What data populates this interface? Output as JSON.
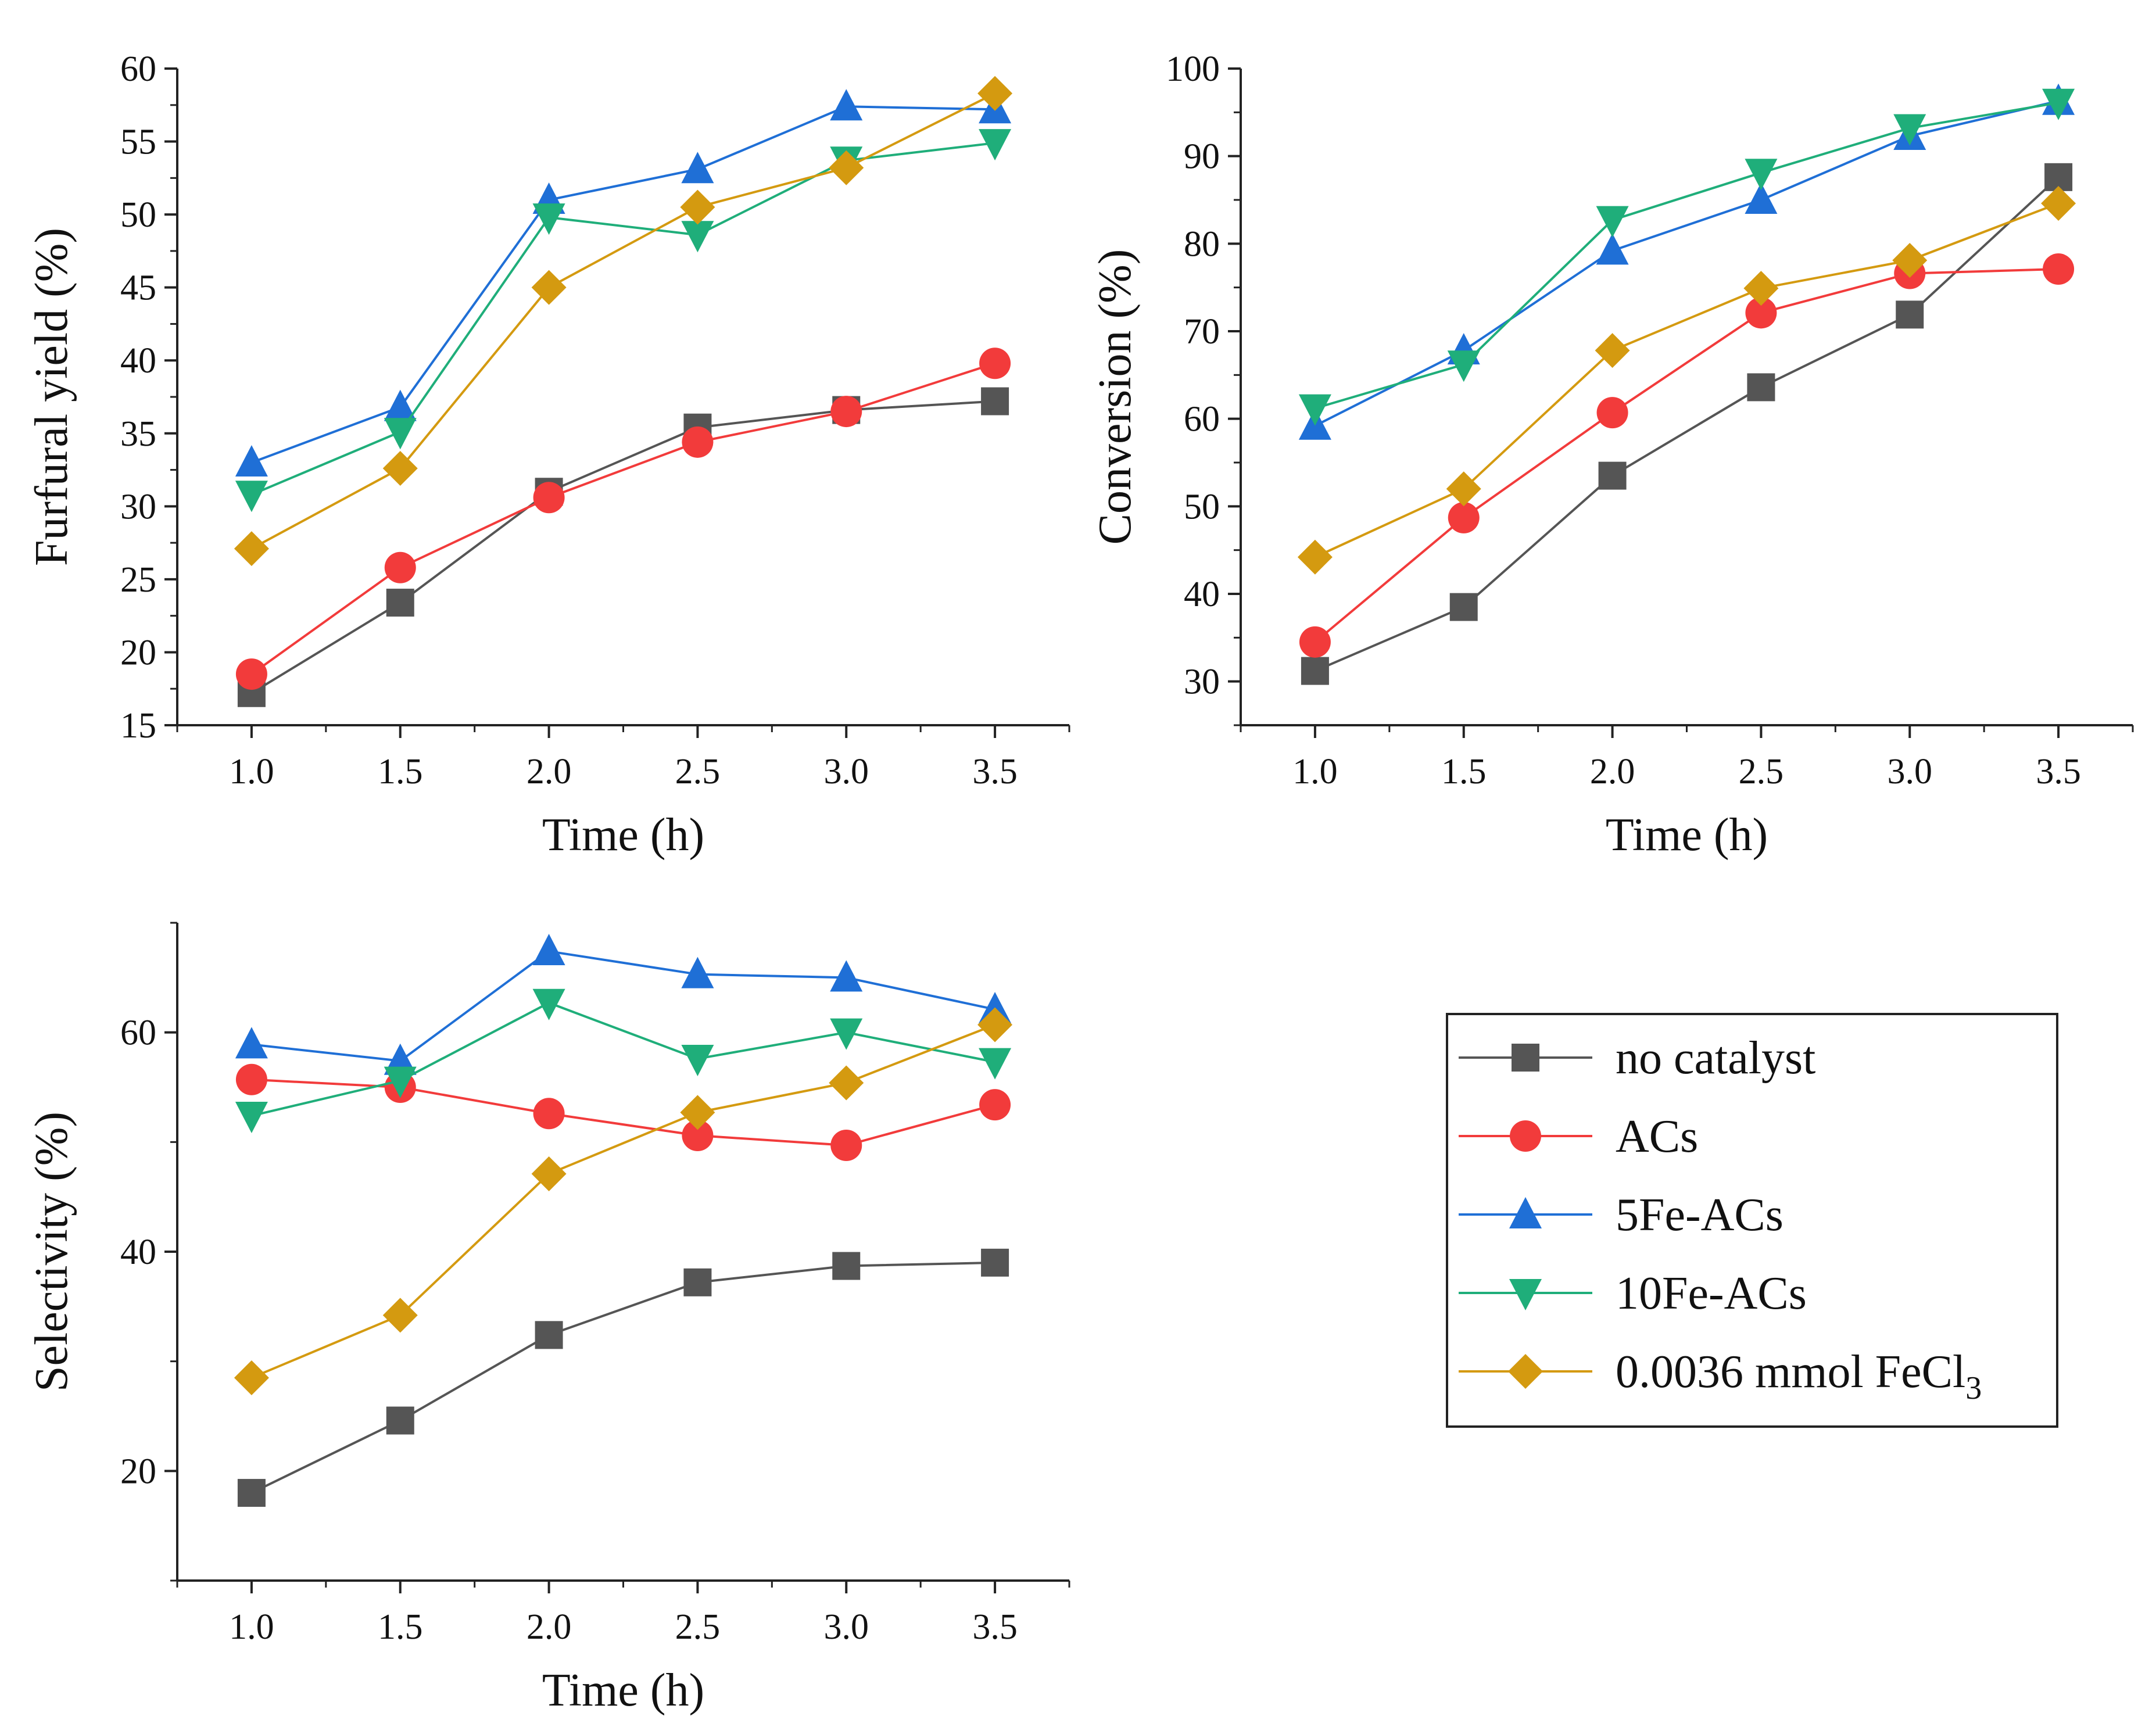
{
  "colors": {
    "no catalyst": "#555555",
    "ACs": "#f23b3b",
    "5Fe-ACs": "#1f6fd6",
    "10Fe-ACs": "#1fae7a",
    "0.0036 mmol FeCl3": "#d49a10"
  },
  "legend": {
    "items": [
      {
        "label": "no catalyst",
        "marker": "square"
      },
      {
        "label": "ACs",
        "marker": "circle"
      },
      {
        "label": "5Fe-ACs",
        "marker": "triangle-up"
      },
      {
        "label": "10Fe-ACs",
        "marker": "triangle-down"
      },
      {
        "label": "0.0036 mmol FeCl",
        "subscript": "3",
        "marker": "diamond"
      }
    ]
  },
  "chart_data": [
    {
      "type": "line",
      "id": "yield",
      "xlabel": "Time (h)",
      "ylabel": "Furfural yield (%)",
      "xlim": [
        0.75,
        3.75
      ],
      "ylim": [
        15,
        60
      ],
      "xticks": [
        "1.0",
        "1.5",
        "2.0",
        "2.5",
        "3.0",
        "3.5"
      ],
      "yticks": [
        "15",
        "20",
        "25",
        "30",
        "35",
        "40",
        "45",
        "50",
        "55",
        "60"
      ],
      "x": [
        1.0,
        1.5,
        2.0,
        2.5,
        3.0,
        3.5
      ],
      "series": [
        {
          "name": "no catalyst",
          "marker": "square",
          "values": [
            17.2,
            23.4,
            31.0,
            35.4,
            36.6,
            37.2
          ]
        },
        {
          "name": "ACs",
          "marker": "circle",
          "values": [
            18.5,
            25.8,
            30.6,
            34.4,
            36.5,
            39.8
          ]
        },
        {
          "name": "5Fe-ACs",
          "marker": "triangle-up",
          "values": [
            33.0,
            36.8,
            51.0,
            53.1,
            57.4,
            57.2
          ]
        },
        {
          "name": "10Fe-ACs",
          "marker": "triangle-down",
          "values": [
            30.8,
            35.1,
            49.8,
            48.6,
            53.7,
            54.9
          ]
        },
        {
          "name": "0.0036 mmol FeCl3",
          "marker": "diamond",
          "values": [
            27.1,
            32.6,
            45.0,
            50.5,
            53.2,
            58.3
          ]
        }
      ]
    },
    {
      "type": "line",
      "id": "conversion",
      "xlabel": "Time (h)",
      "ylabel": "Conversion (%)",
      "xlim": [
        0.75,
        3.75
      ],
      "ylim": [
        25,
        100
      ],
      "xticks": [
        "1.0",
        "1.5",
        "2.0",
        "2.5",
        "3.0",
        "3.5"
      ],
      "yticks": [
        "30",
        "40",
        "50",
        "60",
        "70",
        "80",
        "90",
        "100"
      ],
      "x": [
        1.0,
        1.5,
        2.0,
        2.5,
        3.0,
        3.5
      ],
      "series": [
        {
          "name": "no catalyst",
          "marker": "square",
          "values": [
            31.2,
            38.5,
            53.5,
            63.6,
            71.9,
            87.6
          ]
        },
        {
          "name": "ACs",
          "marker": "circle",
          "values": [
            34.5,
            48.7,
            60.7,
            72.1,
            76.6,
            77.1
          ]
        },
        {
          "name": "5Fe-ACs",
          "marker": "triangle-up",
          "values": [
            59.2,
            67.8,
            79.2,
            85.0,
            92.3,
            96.3
          ]
        },
        {
          "name": "10Fe-ACs",
          "marker": "triangle-down",
          "values": [
            61.2,
            66.2,
            82.7,
            88.1,
            93.2,
            96.1
          ]
        },
        {
          "name": "0.0036 mmol FeCl3",
          "marker": "diamond",
          "values": [
            44.2,
            52.0,
            67.8,
            74.9,
            78.1,
            84.6
          ]
        }
      ]
    },
    {
      "type": "line",
      "id": "selectivity",
      "xlabel": "Time (h)",
      "ylabel": "Selectivity (%)",
      "xlim": [
        0.75,
        3.75
      ],
      "ylim": [
        10,
        70
      ],
      "xticks": [
        "1.0",
        "1.5",
        "2.0",
        "2.5",
        "3.0",
        "3.5"
      ],
      "yticks": [
        "20",
        "40",
        "60"
      ],
      "x": [
        1.0,
        1.5,
        2.0,
        2.5,
        3.0,
        3.5
      ],
      "series": [
        {
          "name": "no catalyst",
          "marker": "square",
          "values": [
            18.0,
            24.6,
            32.4,
            37.2,
            38.7,
            39.0
          ]
        },
        {
          "name": "ACs",
          "marker": "circle",
          "values": [
            55.7,
            55.0,
            52.6,
            50.6,
            49.7,
            53.4
          ]
        },
        {
          "name": "5Fe-ACs",
          "marker": "triangle-up",
          "values": [
            58.9,
            57.4,
            67.4,
            65.3,
            65.0,
            62.1
          ]
        },
        {
          "name": "10Fe-ACs",
          "marker": "triangle-down",
          "values": [
            52.4,
            55.6,
            62.7,
            57.6,
            60.0,
            57.3
          ]
        },
        {
          "name": "0.0036 mmol FeCl3",
          "marker": "diamond",
          "values": [
            28.5,
            34.2,
            47.1,
            52.7,
            55.4,
            60.7
          ]
        }
      ]
    }
  ]
}
